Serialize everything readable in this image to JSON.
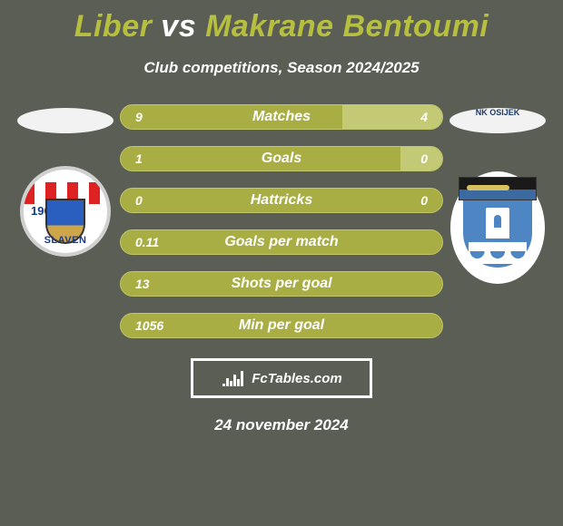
{
  "title_parts": {
    "p1": "Liber",
    "vs": "vs",
    "p2": "Makrane Bentoumi"
  },
  "title_colors": {
    "p1": "#b7bf3e",
    "vs": "#ffffff",
    "p2": "#b7bf3e"
  },
  "subtitle": "Club competitions, Season 2024/2025",
  "date": "24 november 2024",
  "brand": "FcTables.com",
  "colors": {
    "background": "#5a5e54",
    "bar_base": "#a8ae44",
    "bar_right_fill": "#c4c976",
    "bar_border": "#c0c66a",
    "ellipse": "#f2f2f2",
    "brand_border": "#ffffff"
  },
  "left_club": {
    "name": "Slaven",
    "year": "1907"
  },
  "right_club": {
    "name": "NK Osijek"
  },
  "bars": [
    {
      "label": "Matches",
      "left_val": "9",
      "right_val": "4",
      "left_pct": 69,
      "right_pct": 31,
      "show_right": true
    },
    {
      "label": "Goals",
      "left_val": "1",
      "right_val": "0",
      "left_pct": 100,
      "right_pct": 13,
      "show_right": true
    },
    {
      "label": "Hattricks",
      "left_val": "0",
      "right_val": "0",
      "left_pct": 100,
      "right_pct": 0,
      "show_right": true
    },
    {
      "label": "Goals per match",
      "left_val": "0.11",
      "right_val": "",
      "left_pct": 100,
      "right_pct": 0,
      "show_right": false
    },
    {
      "label": "Shots per goal",
      "left_val": "13",
      "right_val": "",
      "left_pct": 100,
      "right_pct": 0,
      "show_right": false
    },
    {
      "label": "Min per goal",
      "left_val": "1056",
      "right_val": "",
      "left_pct": 100,
      "right_pct": 0,
      "show_right": false
    }
  ],
  "bar_style": {
    "height": 28,
    "radius": 14,
    "label_fontsize": 16,
    "value_fontsize": 14
  }
}
